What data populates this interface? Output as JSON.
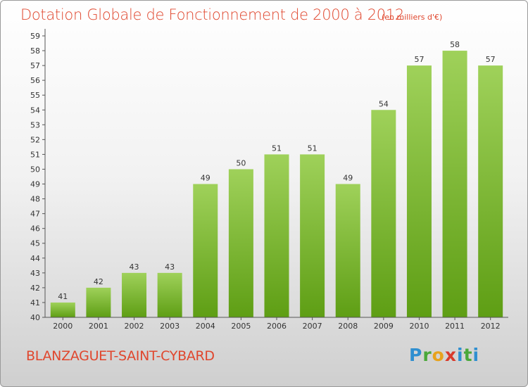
{
  "title": "Dotation Globale de Fonctionnement de 2000 à 2012",
  "subtitle": "(en milliers d'€)",
  "commune": "BLANZAGUET-SAINT-CYBARD",
  "logo": [
    "P",
    "r",
    "o",
    "x",
    "i",
    "t",
    "i"
  ],
  "colors": {
    "title": "#e0462d",
    "bar_top": "#9fd15a",
    "bar_bottom": "#5e9e14",
    "axis": "#555555",
    "grid": "#dddddd"
  },
  "chart_data": {
    "type": "bar",
    "categories": [
      "2000",
      "2001",
      "2002",
      "2003",
      "2004",
      "2005",
      "2006",
      "2007",
      "2008",
      "2009",
      "2010",
      "2011",
      "2012"
    ],
    "values": [
      41,
      42,
      43,
      43,
      49,
      50,
      51,
      51,
      49,
      54,
      57,
      58,
      57
    ],
    "yticks": [
      "40",
      "41",
      "42",
      "43",
      "44",
      "45",
      "46",
      "47",
      "48",
      "49",
      "50",
      "51",
      "52",
      "53",
      "54",
      "55",
      "56",
      "57",
      "58",
      "59"
    ],
    "ylim": [
      40,
      59
    ],
    "title": "Dotation Globale de Fonctionnement de 2000 à 2012",
    "xlabel": "",
    "ylabel": "",
    "grid": false
  }
}
